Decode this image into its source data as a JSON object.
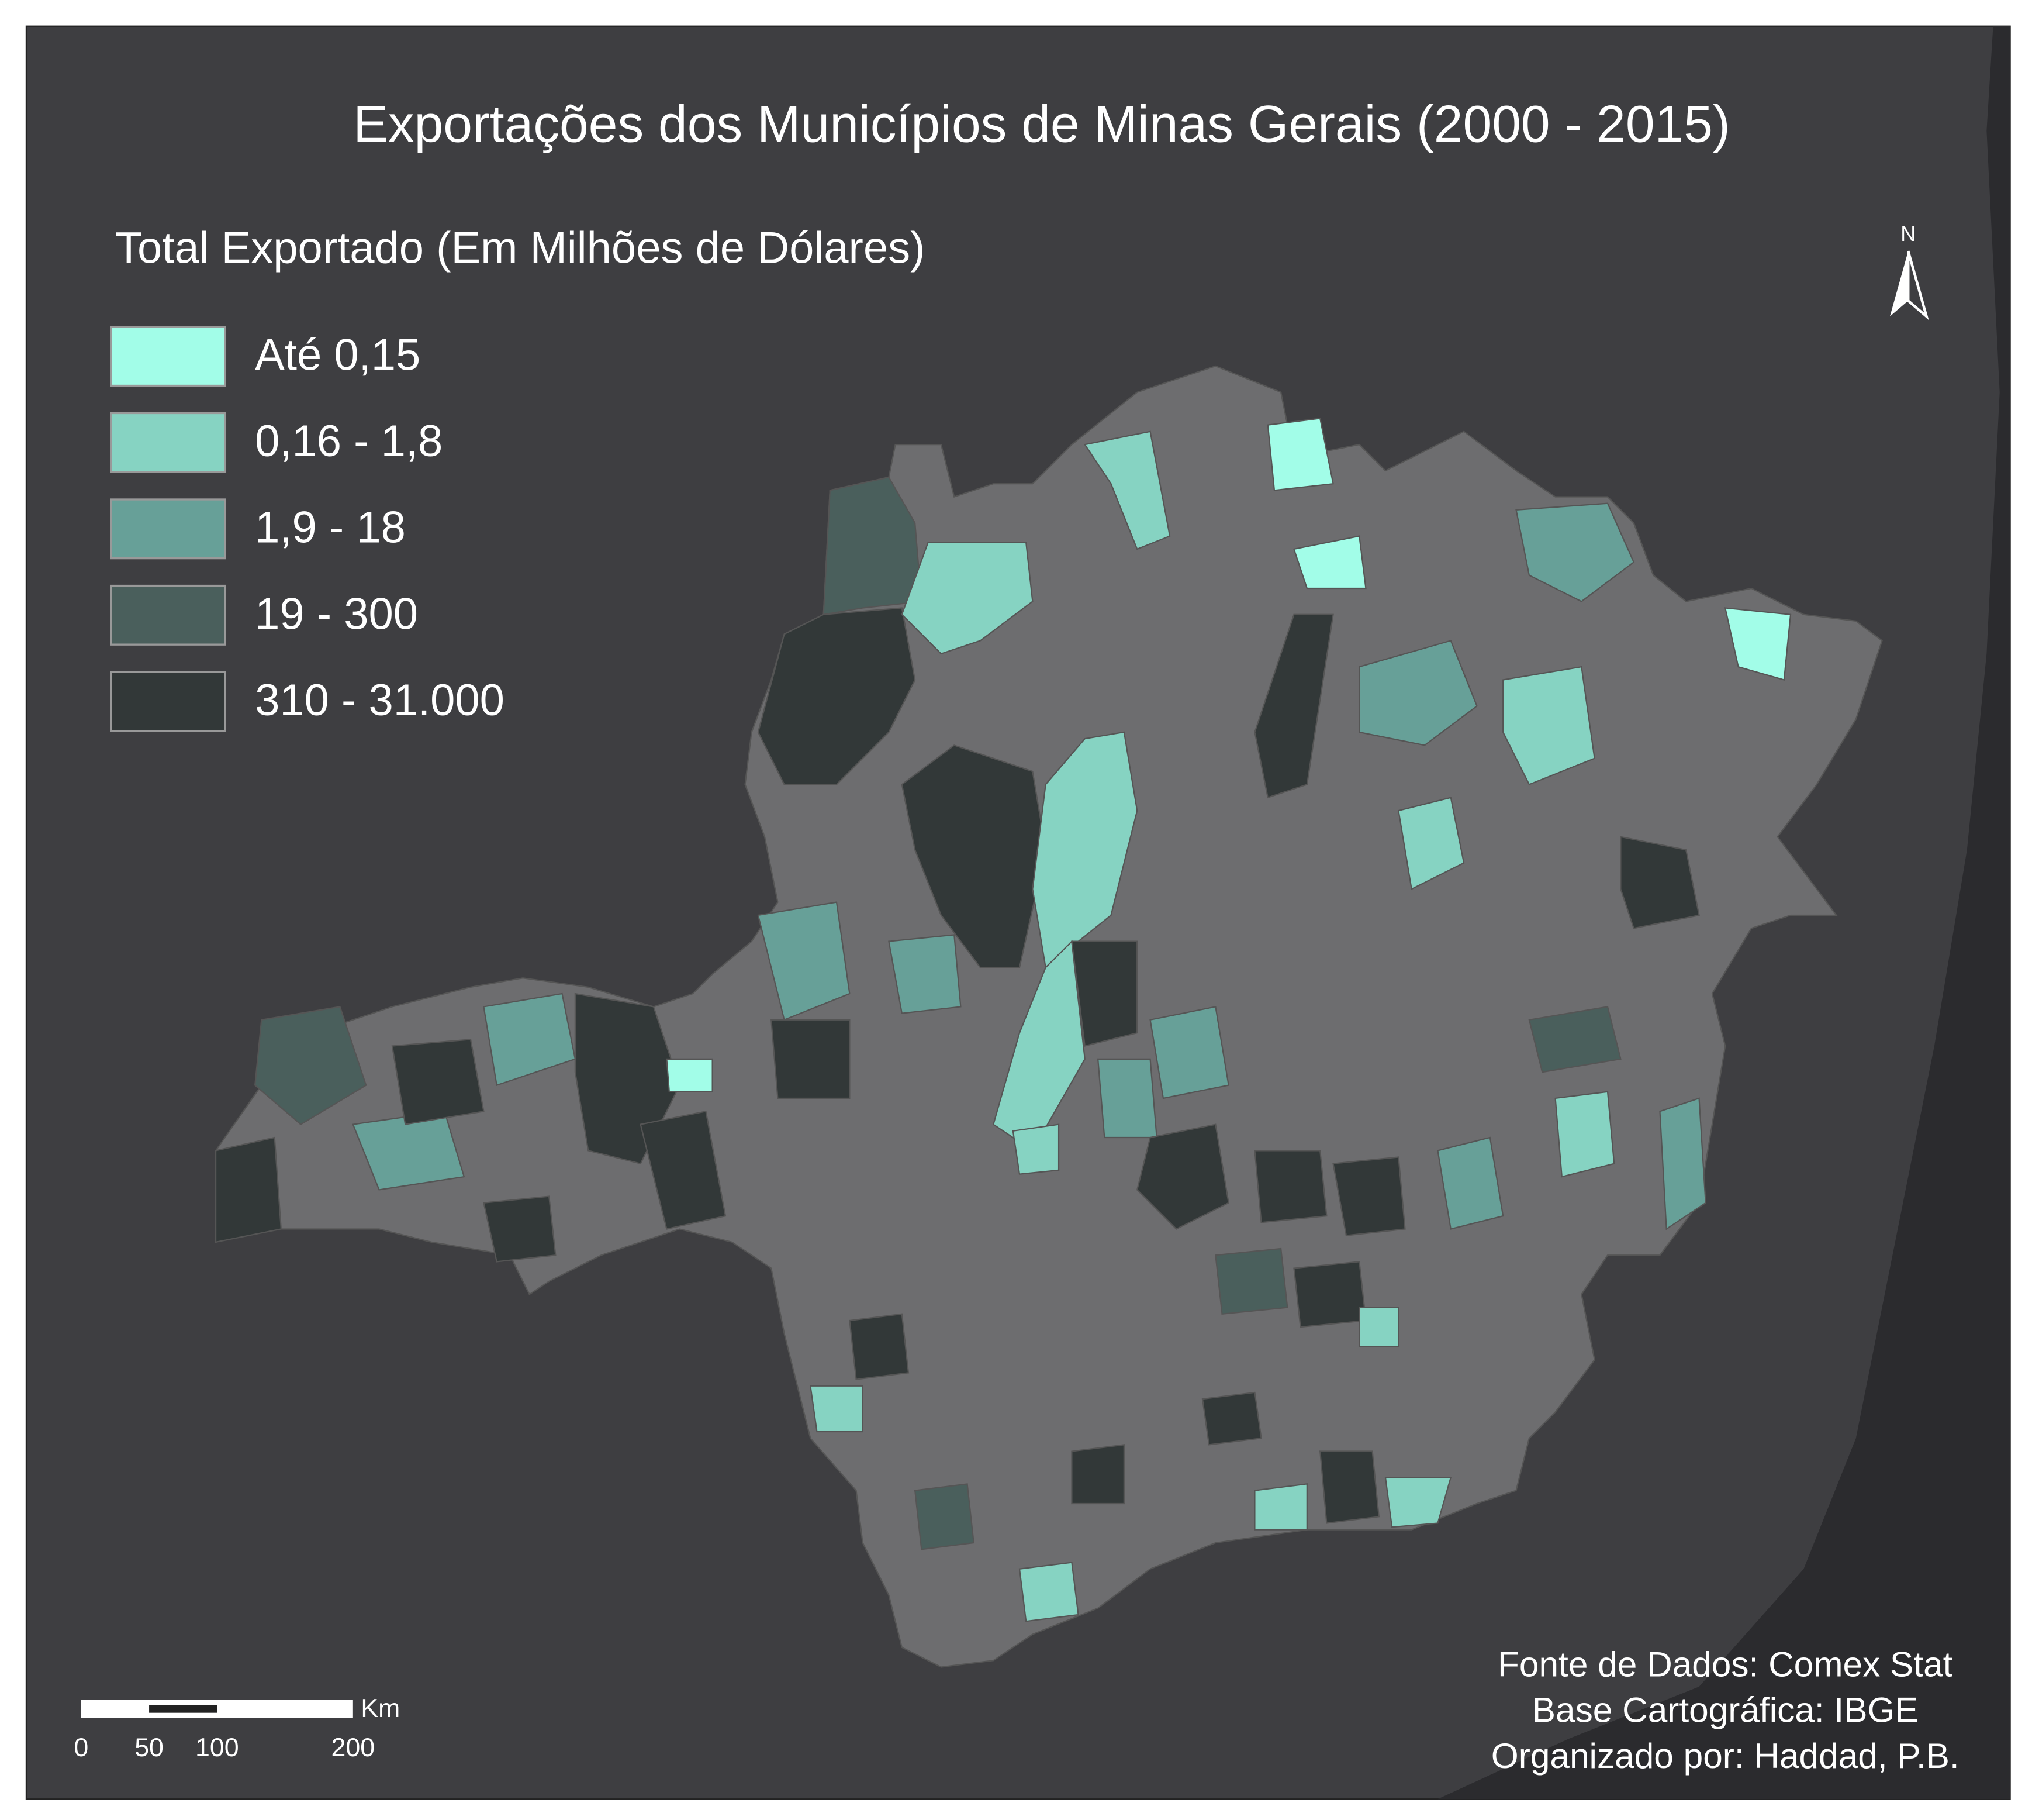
{
  "header": {
    "title": "Exportações dos Municípios de Minas Gerais (2000 - 2015)"
  },
  "legend": {
    "title": "Total Exportado (Em Milhões de Dólares)",
    "items": [
      {
        "label": "Até 0,15",
        "color": "#a2fde8"
      },
      {
        "label": "0,16 - 1,8",
        "color": "#86d3c2"
      },
      {
        "label": "1,9 - 18",
        "color": "#67a098"
      },
      {
        "label": "19 - 300",
        "color": "#4a5f5c"
      },
      {
        "label": "310 - 31.000",
        "color": "#323838"
      }
    ]
  },
  "north_arrow": {
    "label": "N"
  },
  "scale_bar": {
    "ticks": [
      0,
      50,
      100,
      200
    ],
    "unit": "Km"
  },
  "credits": [
    "Fonte de Dados: Comex Stat",
    "Base Cartográfica: IBGE",
    "Organizado por: Haddad, P.B."
  ]
}
